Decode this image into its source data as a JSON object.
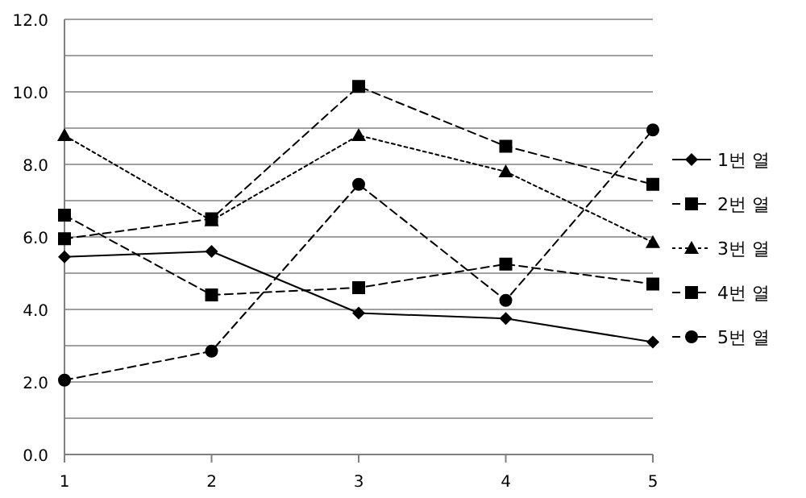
{
  "chart_data": {
    "type": "line",
    "x": [
      1,
      2,
      3,
      4,
      5
    ],
    "series": [
      {
        "name": "1번 열",
        "color": "#000000",
        "marker": "diamond",
        "line_style": "solid",
        "values": [
          5.45,
          5.6,
          3.9,
          3.75,
          3.1
        ]
      },
      {
        "name": "2번 열",
        "color": "#000000",
        "marker": "square",
        "line_style": "dashed",
        "values": [
          6.6,
          4.4,
          4.6,
          5.25,
          4.7
        ]
      },
      {
        "name": "3번 열",
        "color": "#000000",
        "marker": "triangle",
        "line_style": "dotted",
        "values": [
          8.8,
          6.45,
          8.8,
          7.8,
          5.85
        ]
      },
      {
        "name": "4번 열",
        "color": "#000000",
        "marker": "square",
        "line_style": "dashed",
        "values": [
          5.95,
          6.5,
          10.15,
          8.5,
          7.45
        ]
      },
      {
        "name": "5번 열",
        "color": "#000000",
        "marker": "circle",
        "line_style": "dashed",
        "values": [
          2.05,
          2.85,
          7.45,
          4.25,
          8.95
        ]
      }
    ],
    "xlim": [
      1,
      5
    ],
    "xticks": [
      1,
      2,
      3,
      4,
      5
    ],
    "ylim": [
      0,
      12
    ],
    "yticks": [
      {
        "value": 0,
        "label": "0.0"
      },
      {
        "value": 1,
        "label": null
      },
      {
        "value": 2,
        "label": "2.0"
      },
      {
        "value": 3,
        "label": null
      },
      {
        "value": 4,
        "label": "4.0"
      },
      {
        "value": 5,
        "label": null
      },
      {
        "value": 6,
        "label": "6.0"
      },
      {
        "value": 7,
        "label": null
      },
      {
        "value": 8,
        "label": "8.0"
      },
      {
        "value": 9,
        "label": null
      },
      {
        "value": 10,
        "label": "10.0"
      },
      {
        "value": 11,
        "label": null
      },
      {
        "value": 12,
        "label": "12.0"
      }
    ],
    "grid": "y",
    "legend": "right"
  }
}
